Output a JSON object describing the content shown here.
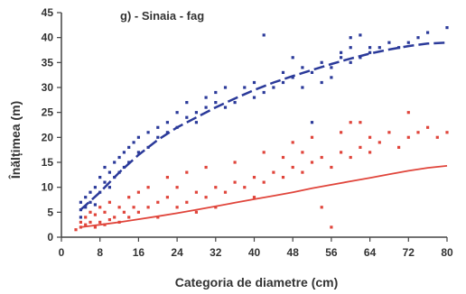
{
  "chart_data": {
    "type": "scatter",
    "title": "g) - Sinaia - fag",
    "xlabel": "Categoria de diametre (cm)",
    "ylabel": "Înălțimea (m)",
    "xlim": [
      0,
      80
    ],
    "ylim": [
      0,
      45
    ],
    "x_ticks": [
      0,
      8,
      16,
      24,
      32,
      40,
      48,
      56,
      64,
      72,
      80
    ],
    "y_ticks": [
      0,
      5,
      10,
      15,
      20,
      25,
      30,
      35,
      40,
      45
    ],
    "grid": false,
    "series": [
      {
        "color": "#2b3a9a",
        "points": [
          [
            4,
            4
          ],
          [
            4,
            5.5
          ],
          [
            4,
            7
          ],
          [
            5,
            6
          ],
          [
            5,
            8
          ],
          [
            6,
            9
          ],
          [
            6,
            7
          ],
          [
            7,
            10
          ],
          [
            7,
            6.5
          ],
          [
            8,
            12
          ],
          [
            8,
            9
          ],
          [
            9,
            11
          ],
          [
            9,
            14
          ],
          [
            10,
            10
          ],
          [
            10,
            13
          ],
          [
            11,
            15
          ],
          [
            11,
            12
          ],
          [
            12,
            16
          ],
          [
            12,
            13
          ],
          [
            13,
            17
          ],
          [
            13,
            14
          ],
          [
            14,
            18
          ],
          [
            14,
            15
          ],
          [
            15,
            19
          ],
          [
            16,
            17
          ],
          [
            16,
            20
          ],
          [
            18,
            18
          ],
          [
            18,
            21
          ],
          [
            20,
            20
          ],
          [
            20,
            22
          ],
          [
            22,
            21
          ],
          [
            22,
            23
          ],
          [
            24,
            22
          ],
          [
            24,
            25
          ],
          [
            26,
            24
          ],
          [
            26,
            27
          ],
          [
            28,
            25
          ],
          [
            28,
            23
          ],
          [
            30,
            26
          ],
          [
            30,
            28
          ],
          [
            32,
            27
          ],
          [
            32,
            29
          ],
          [
            34,
            26
          ],
          [
            34,
            30
          ],
          [
            36,
            27
          ],
          [
            38,
            30
          ],
          [
            40,
            28
          ],
          [
            40,
            31
          ],
          [
            42,
            29
          ],
          [
            42,
            40.5
          ],
          [
            44,
            30
          ],
          [
            46,
            31
          ],
          [
            46,
            33
          ],
          [
            48,
            32
          ],
          [
            48,
            36
          ],
          [
            50,
            30
          ],
          [
            50,
            34
          ],
          [
            52,
            33
          ],
          [
            52,
            23
          ],
          [
            54,
            31
          ],
          [
            54,
            35
          ],
          [
            56,
            34
          ],
          [
            56,
            32
          ],
          [
            58,
            36
          ],
          [
            58,
            37
          ],
          [
            60,
            35
          ],
          [
            60,
            38
          ],
          [
            60,
            40
          ],
          [
            62,
            36
          ],
          [
            62,
            40.5
          ],
          [
            64,
            38
          ],
          [
            64,
            37
          ],
          [
            66,
            38
          ],
          [
            68,
            39
          ],
          [
            70,
            38
          ],
          [
            72,
            39
          ],
          [
            74,
            40
          ],
          [
            76,
            41
          ],
          [
            80,
            42
          ]
        ]
      },
      {
        "color": "#e0453b",
        "points": [
          [
            3,
            1.5
          ],
          [
            4,
            2
          ],
          [
            4,
            3
          ],
          [
            5,
            2.5
          ],
          [
            5,
            4
          ],
          [
            6,
            3
          ],
          [
            6,
            5
          ],
          [
            7,
            2
          ],
          [
            7,
            4.5
          ],
          [
            8,
            3
          ],
          [
            8,
            6
          ],
          [
            9,
            2.5
          ],
          [
            9,
            5
          ],
          [
            10,
            3.5
          ],
          [
            10,
            7
          ],
          [
            11,
            4
          ],
          [
            12,
            3
          ],
          [
            12,
            6
          ],
          [
            13,
            5
          ],
          [
            14,
            4
          ],
          [
            14,
            8
          ],
          [
            15,
            6
          ],
          [
            16,
            5
          ],
          [
            16,
            9
          ],
          [
            18,
            6
          ],
          [
            18,
            10
          ],
          [
            20,
            7
          ],
          [
            20,
            4
          ],
          [
            22,
            8
          ],
          [
            22,
            12
          ],
          [
            24,
            6
          ],
          [
            24,
            10
          ],
          [
            26,
            7
          ],
          [
            26,
            13
          ],
          [
            28,
            9
          ],
          [
            28,
            5
          ],
          [
            30,
            8
          ],
          [
            30,
            14
          ],
          [
            32,
            10
          ],
          [
            32,
            6
          ],
          [
            34,
            9
          ],
          [
            36,
            11
          ],
          [
            36,
            15
          ],
          [
            38,
            10
          ],
          [
            40,
            12
          ],
          [
            40,
            8
          ],
          [
            42,
            11
          ],
          [
            42,
            17
          ],
          [
            44,
            13
          ],
          [
            46,
            12
          ],
          [
            46,
            16
          ],
          [
            48,
            14
          ],
          [
            48,
            19
          ],
          [
            50,
            13
          ],
          [
            50,
            17
          ],
          [
            52,
            15
          ],
          [
            52,
            20
          ],
          [
            54,
            6
          ],
          [
            54,
            16
          ],
          [
            56,
            14
          ],
          [
            56,
            2
          ],
          [
            58,
            17
          ],
          [
            58,
            21
          ],
          [
            60,
            16
          ],
          [
            60,
            23
          ],
          [
            62,
            18
          ],
          [
            62,
            23
          ],
          [
            64,
            17
          ],
          [
            64,
            20
          ],
          [
            66,
            19
          ],
          [
            68,
            21
          ],
          [
            70,
            18
          ],
          [
            72,
            20
          ],
          [
            72,
            25
          ],
          [
            74,
            21
          ],
          [
            76,
            22
          ],
          [
            78,
            20
          ],
          [
            80,
            21
          ]
        ]
      }
    ],
    "trend_lines": [
      {
        "color": "#2b3a9a",
        "style": "dashed",
        "points": [
          [
            4,
            5.5
          ],
          [
            8,
            9
          ],
          [
            12,
            13
          ],
          [
            16,
            16.5
          ],
          [
            20,
            19.5
          ],
          [
            24,
            22
          ],
          [
            28,
            24
          ],
          [
            32,
            26
          ],
          [
            36,
            27.8
          ],
          [
            40,
            29.5
          ],
          [
            44,
            31
          ],
          [
            48,
            32.3
          ],
          [
            52,
            33.5
          ],
          [
            56,
            34.7
          ],
          [
            60,
            35.8
          ],
          [
            64,
            36.8
          ],
          [
            68,
            37.6
          ],
          [
            72,
            38.3
          ],
          [
            76,
            38.8
          ],
          [
            80,
            39
          ]
        ]
      },
      {
        "color": "#e0453b",
        "style": "solid",
        "points": [
          [
            4,
            2
          ],
          [
            8,
            2.5
          ],
          [
            12,
            3
          ],
          [
            16,
            3.6
          ],
          [
            20,
            4.2
          ],
          [
            24,
            4.8
          ],
          [
            28,
            5.5
          ],
          [
            32,
            6.2
          ],
          [
            36,
            6.9
          ],
          [
            40,
            7.6
          ],
          [
            44,
            8.3
          ],
          [
            48,
            9
          ],
          [
            52,
            9.8
          ],
          [
            56,
            10.5
          ],
          [
            60,
            11.2
          ],
          [
            64,
            11.9
          ],
          [
            68,
            12.6
          ],
          [
            72,
            13.3
          ],
          [
            76,
            13.9
          ],
          [
            80,
            14.3
          ]
        ]
      }
    ]
  }
}
